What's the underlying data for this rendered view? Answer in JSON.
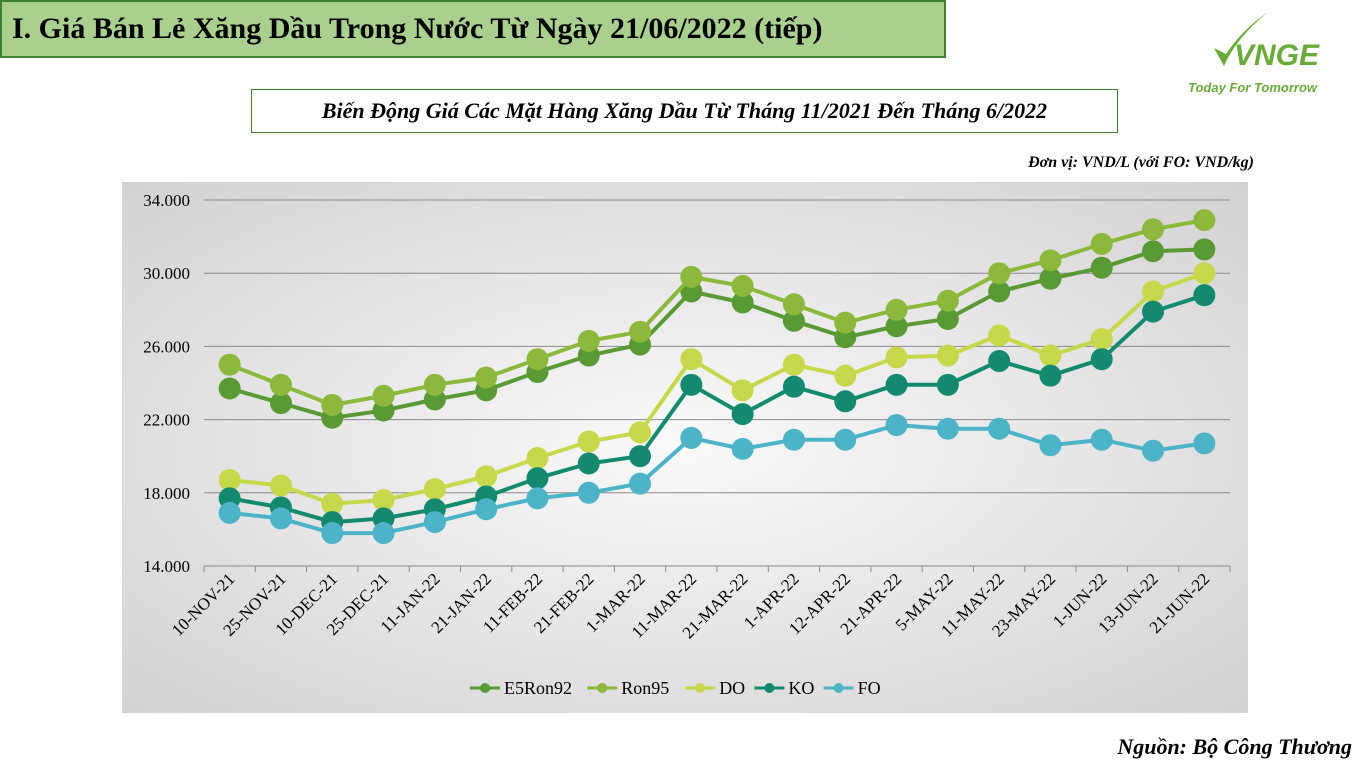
{
  "header": {
    "title": "I. Giá Bán Lẻ Xăng Dầu Trong Nước Từ Ngày 21/06/2022 (tiếp)"
  },
  "logo": {
    "brand": "VNGE",
    "tagline": "Today For Tomorrow",
    "color": "#6aaa3a",
    "icon": "leaf-check-icon"
  },
  "chart_data": {
    "type": "line",
    "title": "Biến Động Giá Các Mặt Hàng Xăng Dầu Từ Tháng 11/2021 Đến Tháng 6/2022",
    "unit": "Đơn vị: VND/L (với FO: VND/kg)",
    "categories": [
      "10-NOV-21",
      "25-NOV-21",
      "10-DEC-21",
      "25-DEC-21",
      "11-JAN-22",
      "21-JAN-22",
      "11-FEB-22",
      "21-FEB-22",
      "1-MAR-22",
      "11-MAR-22",
      "21-MAR-22",
      "1-APR-22",
      "12-APR-22",
      "21-APR-22",
      "5-MAY-22",
      "11-MAY-22",
      "23-MAY-22",
      "1-JUN-22",
      "13-JUN-22",
      "21-JUN-22"
    ],
    "ylim": [
      14000,
      34000
    ],
    "yticks": [
      14000,
      18000,
      22000,
      26000,
      30000,
      34000
    ],
    "ytick_labels": [
      "14.000",
      "18.000",
      "22.000",
      "26.000",
      "30.000",
      "34.000"
    ],
    "grid": true,
    "legend_position": "bottom",
    "series": [
      {
        "name": "E5Ron92",
        "color": "#5a9a35",
        "values": [
          23700,
          22900,
          22100,
          22500,
          23100,
          23600,
          24600,
          25500,
          26100,
          29000,
          28400,
          27400,
          26500,
          27100,
          27500,
          29000,
          29700,
          30300,
          31200,
          31300
        ]
      },
      {
        "name": "Ron95",
        "color": "#8cb83c",
        "values": [
          25000,
          23900,
          22800,
          23300,
          23900,
          24300,
          25300,
          26300,
          26800,
          29800,
          29300,
          28300,
          27300,
          28000,
          28500,
          30000,
          30700,
          31600,
          32400,
          32900
        ]
      },
      {
        "name": "DO",
        "color": "#c5d94a",
        "values": [
          18700,
          18400,
          17400,
          17600,
          18200,
          18900,
          19900,
          20800,
          21300,
          25300,
          23600,
          25000,
          24400,
          25400,
          25500,
          26600,
          25500,
          26400,
          29000,
          30000
        ]
      },
      {
        "name": "KO",
        "color": "#138a6e",
        "values": [
          17700,
          17200,
          16400,
          16600,
          17100,
          17800,
          18800,
          19600,
          20000,
          23900,
          22300,
          23800,
          23000,
          23900,
          23900,
          25200,
          24400,
          25300,
          27900,
          28800
        ]
      },
      {
        "name": "FO",
        "color": "#4db3c6",
        "values": [
          16900,
          16600,
          15800,
          15800,
          16400,
          17100,
          17700,
          18000,
          18500,
          21000,
          20400,
          20900,
          20900,
          21700,
          21500,
          21500,
          20600,
          20900,
          20300,
          20700
        ]
      }
    ]
  },
  "source": "Nguồn: Bộ Công Thương"
}
